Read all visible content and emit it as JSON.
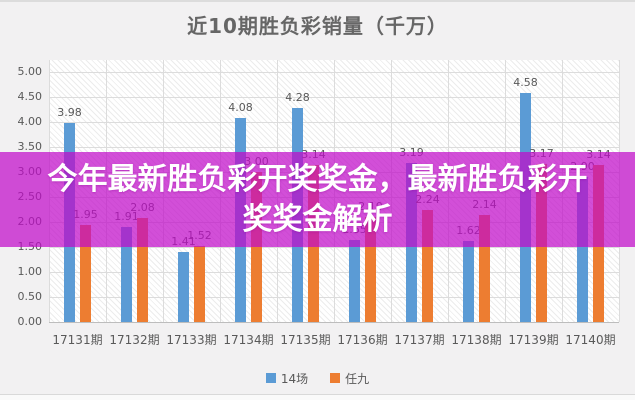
{
  "title": "近10期胜负彩销量（千万）",
  "overlay": {
    "line1": "今年最新胜负彩开奖奖金，最新胜负彩开",
    "line2": "奖奖金解析",
    "color": "#c10bc9"
  },
  "legend": [
    {
      "label": "14场",
      "color": "#5b9bd5"
    },
    {
      "label": "任九",
      "color": "#ed7d31"
    }
  ],
  "chart_data": {
    "type": "bar",
    "title": "近10期胜负彩销量（千万）",
    "categories": [
      "17131期",
      "17132期",
      "17133期",
      "17134期",
      "17135期",
      "17136期",
      "17137期",
      "17138期",
      "17139期",
      "17140期"
    ],
    "series": [
      {
        "name": "14场",
        "color": "#5b9bd5",
        "values": [
          3.98,
          1.91,
          1.41,
          4.08,
          4.28,
          1.65,
          3.19,
          1.62,
          4.58,
          2.9
        ]
      },
      {
        "name": "任九",
        "color": "#ed7d31",
        "values": [
          1.95,
          2.08,
          1.52,
          3.0,
          3.14,
          2.1,
          2.24,
          2.14,
          3.17,
          3.14
        ]
      }
    ],
    "ylabel": "",
    "xlabel": "",
    "ylim": [
      0,
      5
    ],
    "ytick_step": 0.5,
    "ytick_format": "0.00",
    "data_labels": true,
    "grid": true,
    "legend_position": "bottom",
    "plot_background": "diagonal-hatch"
  }
}
